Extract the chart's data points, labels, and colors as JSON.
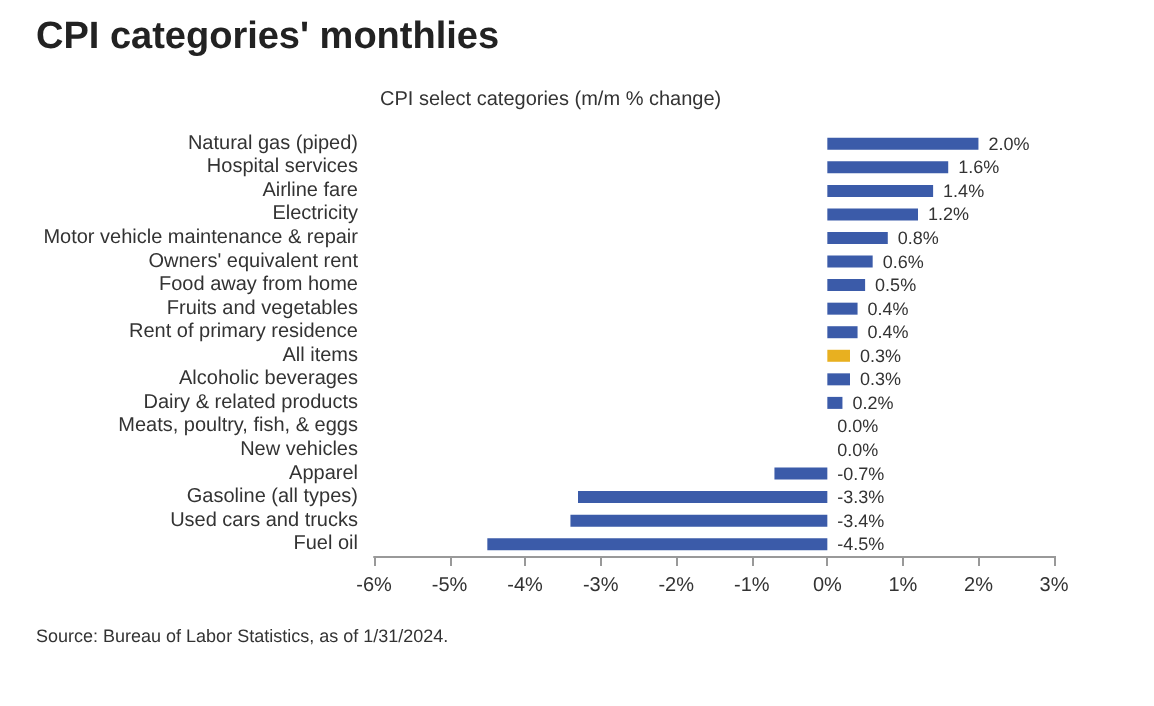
{
  "chart_data": {
    "type": "bar",
    "orientation": "horizontal",
    "title": "CPI categories' monthlies",
    "subtitle": "CPI select categories (m/m % change)",
    "categories": [
      "Natural gas (piped)",
      "Hospital services",
      "Airline fare",
      "Electricity",
      "Motor vehicle maintenance & repair",
      "Owners' equivalent rent",
      "Food away from home",
      "Fruits and vegetables",
      "Rent of primary residence",
      "All items",
      "Alcoholic beverages",
      "Dairy & related products",
      "Meats, poultry, fish, & eggs",
      "New vehicles",
      "Apparel",
      "Gasoline (all types)",
      "Used cars and trucks",
      "Fuel oil"
    ],
    "values": [
      2.0,
      1.6,
      1.4,
      1.2,
      0.8,
      0.6,
      0.5,
      0.4,
      0.4,
      0.3,
      0.3,
      0.2,
      0.0,
      0.0,
      -0.7,
      -3.3,
      -3.4,
      -4.5
    ],
    "value_labels": [
      "2.0%",
      "1.6%",
      "1.4%",
      "1.2%",
      "0.8%",
      "0.6%",
      "0.5%",
      "0.4%",
      "0.4%",
      "0.3%",
      "0.3%",
      "0.2%",
      "0.0%",
      "0.0%",
      "-0.7%",
      "-3.3%",
      "-3.4%",
      "-4.5%"
    ],
    "colors": [
      "#3b5ba9",
      "#3b5ba9",
      "#3b5ba9",
      "#3b5ba9",
      "#3b5ba9",
      "#3b5ba9",
      "#3b5ba9",
      "#3b5ba9",
      "#3b5ba9",
      "#e8b020",
      "#3b5ba9",
      "#3b5ba9",
      "#3b5ba9",
      "#3b5ba9",
      "#3b5ba9",
      "#3b5ba9",
      "#3b5ba9",
      "#3b5ba9"
    ],
    "xlim": [
      -6,
      3
    ],
    "xticks": [
      {
        "value": -6,
        "label": "-6%"
      },
      {
        "value": -5,
        "label": "-5%"
      },
      {
        "value": -4,
        "label": "-4%"
      },
      {
        "value": -3,
        "label": "-3%"
      },
      {
        "value": -2,
        "label": "-2%"
      },
      {
        "value": -1,
        "label": "-1%"
      },
      {
        "value": 0,
        "label": "0%"
      },
      {
        "value": 1,
        "label": "1%"
      },
      {
        "value": 2,
        "label": "2%"
      },
      {
        "value": 3,
        "label": "3%"
      }
    ],
    "grid": false,
    "annotations": [
      "Source: Bureau of Labor Statistics, as of 1/31/2024."
    ]
  }
}
